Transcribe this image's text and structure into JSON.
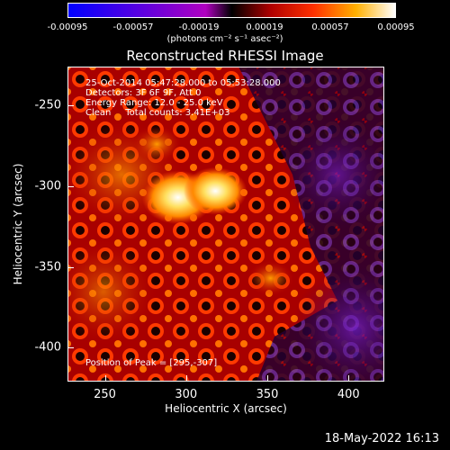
{
  "chart_data": {
    "type": "heatmap",
    "title": "Reconstructed RHESSI Image",
    "xlabel": "Heliocentric X (arcsec)",
    "ylabel": "Heliocentric Y (arcsec)",
    "xlim": [
      227,
      422
    ],
    "ylim": [
      -421,
      -226
    ],
    "x_ticks": [
      250,
      300,
      350,
      400
    ],
    "y_ticks": [
      -250,
      -300,
      -350,
      -400
    ],
    "colorbar": {
      "ticks": [
        "-0.00095",
        "-0.00057",
        "-0.00019",
        "0.00019",
        "0.00057",
        "0.00095"
      ],
      "min": -0.00095,
      "max": 0.00095,
      "unit_text": "(photons cm⁻² s⁻¹ asec⁻²)"
    },
    "annotations": {
      "time": "25-Oct-2014 05:47:28.000 to 05:53:28.000",
      "detectors": "Detectors: 3F 6F 9F, Att 0",
      "energy": "Energy Range: 12.0 - 25.0 keV",
      "clean": "Clean     Total counts: 3.41E+03",
      "peak": "Position of Peak = [295,-307]"
    },
    "peak": [
      295,
      -307
    ],
    "sources": [
      {
        "x": 295,
        "y": -307,
        "value": 0.00095
      },
      {
        "x": 318,
        "y": -303,
        "value": 0.0008
      },
      {
        "x": 282,
        "y": -274,
        "value": 0.00055
      },
      {
        "x": 352,
        "y": -357,
        "value": 0.0005
      }
    ]
  },
  "footer": {
    "date": "18-May-2022 16:13"
  }
}
